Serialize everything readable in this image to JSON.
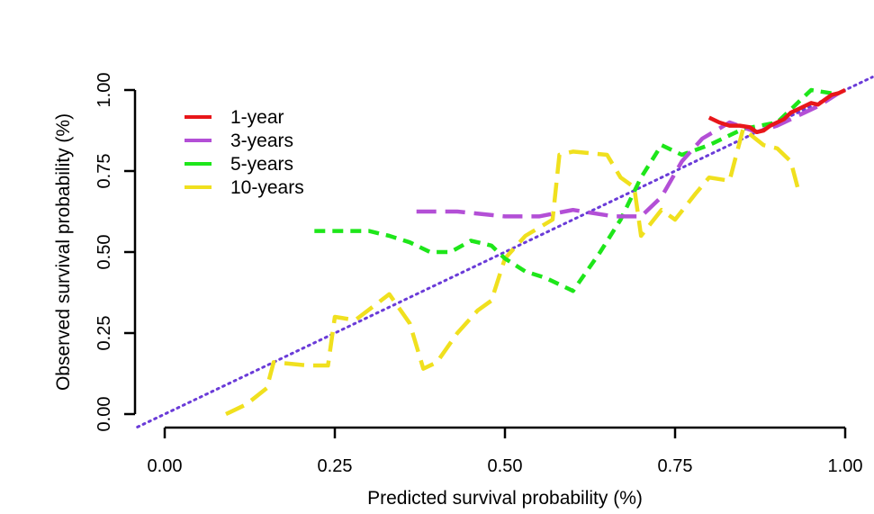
{
  "chart_data": {
    "type": "line",
    "title": "",
    "xlabel": "Predicted survival probability (%)",
    "ylabel": "Observed survival probability (%)",
    "xlim": [
      0,
      1
    ],
    "ylim": [
      0,
      1
    ],
    "xticks": [
      "0.00",
      "0.25",
      "0.50",
      "0.75",
      "1.00"
    ],
    "yticks": [
      "0.00",
      "0.25",
      "0.50",
      "0.75",
      "1.00"
    ],
    "grid": false,
    "legend_position": "top-left",
    "reference_line": {
      "x": [
        -0.04,
        1.04
      ],
      "y": [
        -0.04,
        1.04
      ],
      "color": "#6a3bd8",
      "style": "dotted"
    },
    "series": [
      {
        "name": "1-year",
        "color": "#e8161a",
        "dash": "solid",
        "x": [
          0.8,
          0.815,
          0.83,
          0.845,
          0.86,
          0.87,
          0.88,
          0.89,
          0.9,
          0.91,
          0.92,
          0.93,
          0.94,
          0.95,
          0.96,
          0.97,
          0.98,
          0.99,
          1.0
        ],
        "y": [
          0.915,
          0.9,
          0.89,
          0.89,
          0.885,
          0.87,
          0.875,
          0.89,
          0.9,
          0.91,
          0.93,
          0.94,
          0.95,
          0.96,
          0.955,
          0.97,
          0.985,
          0.99,
          1.0
        ]
      },
      {
        "name": "3-years",
        "color": "#b34fd6",
        "dash": "long",
        "x": [
          0.37,
          0.43,
          0.5,
          0.55,
          0.6,
          0.63,
          0.66,
          0.7,
          0.73,
          0.76,
          0.79,
          0.83,
          0.87,
          0.9,
          0.93,
          0.96,
          0.99
        ],
        "y": [
          0.625,
          0.625,
          0.61,
          0.61,
          0.63,
          0.62,
          0.61,
          0.61,
          0.67,
          0.78,
          0.85,
          0.9,
          0.87,
          0.89,
          0.92,
          0.95,
          0.99
        ]
      },
      {
        "name": "5-years",
        "color": "#1ee61a",
        "dash": "medium",
        "x": [
          0.22,
          0.3,
          0.33,
          0.36,
          0.39,
          0.42,
          0.45,
          0.48,
          0.5,
          0.53,
          0.56,
          0.6,
          0.64,
          0.67,
          0.7,
          0.73,
          0.76,
          0.8,
          0.85,
          0.9,
          0.95,
          0.98
        ],
        "y": [
          0.565,
          0.565,
          0.55,
          0.53,
          0.5,
          0.5,
          0.535,
          0.52,
          0.48,
          0.44,
          0.42,
          0.38,
          0.5,
          0.6,
          0.73,
          0.83,
          0.8,
          0.83,
          0.88,
          0.9,
          1.0,
          0.99
        ]
      },
      {
        "name": "10-years",
        "color": "#f0e01e",
        "dash": "long",
        "x": [
          0.09,
          0.12,
          0.15,
          0.16,
          0.21,
          0.24,
          0.25,
          0.28,
          0.33,
          0.36,
          0.38,
          0.4,
          0.43,
          0.46,
          0.48,
          0.5,
          0.53,
          0.57,
          0.58,
          0.6,
          0.65,
          0.67,
          0.69,
          0.7,
          0.73,
          0.75,
          0.78,
          0.8,
          0.83,
          0.85,
          0.88,
          0.9,
          0.92,
          0.93
        ],
        "y": [
          0.0,
          0.03,
          0.08,
          0.16,
          0.15,
          0.15,
          0.3,
          0.29,
          0.37,
          0.28,
          0.14,
          0.16,
          0.25,
          0.32,
          0.35,
          0.48,
          0.55,
          0.6,
          0.8,
          0.81,
          0.8,
          0.73,
          0.7,
          0.55,
          0.63,
          0.6,
          0.68,
          0.73,
          0.72,
          0.88,
          0.83,
          0.82,
          0.78,
          0.7
        ]
      }
    ]
  }
}
